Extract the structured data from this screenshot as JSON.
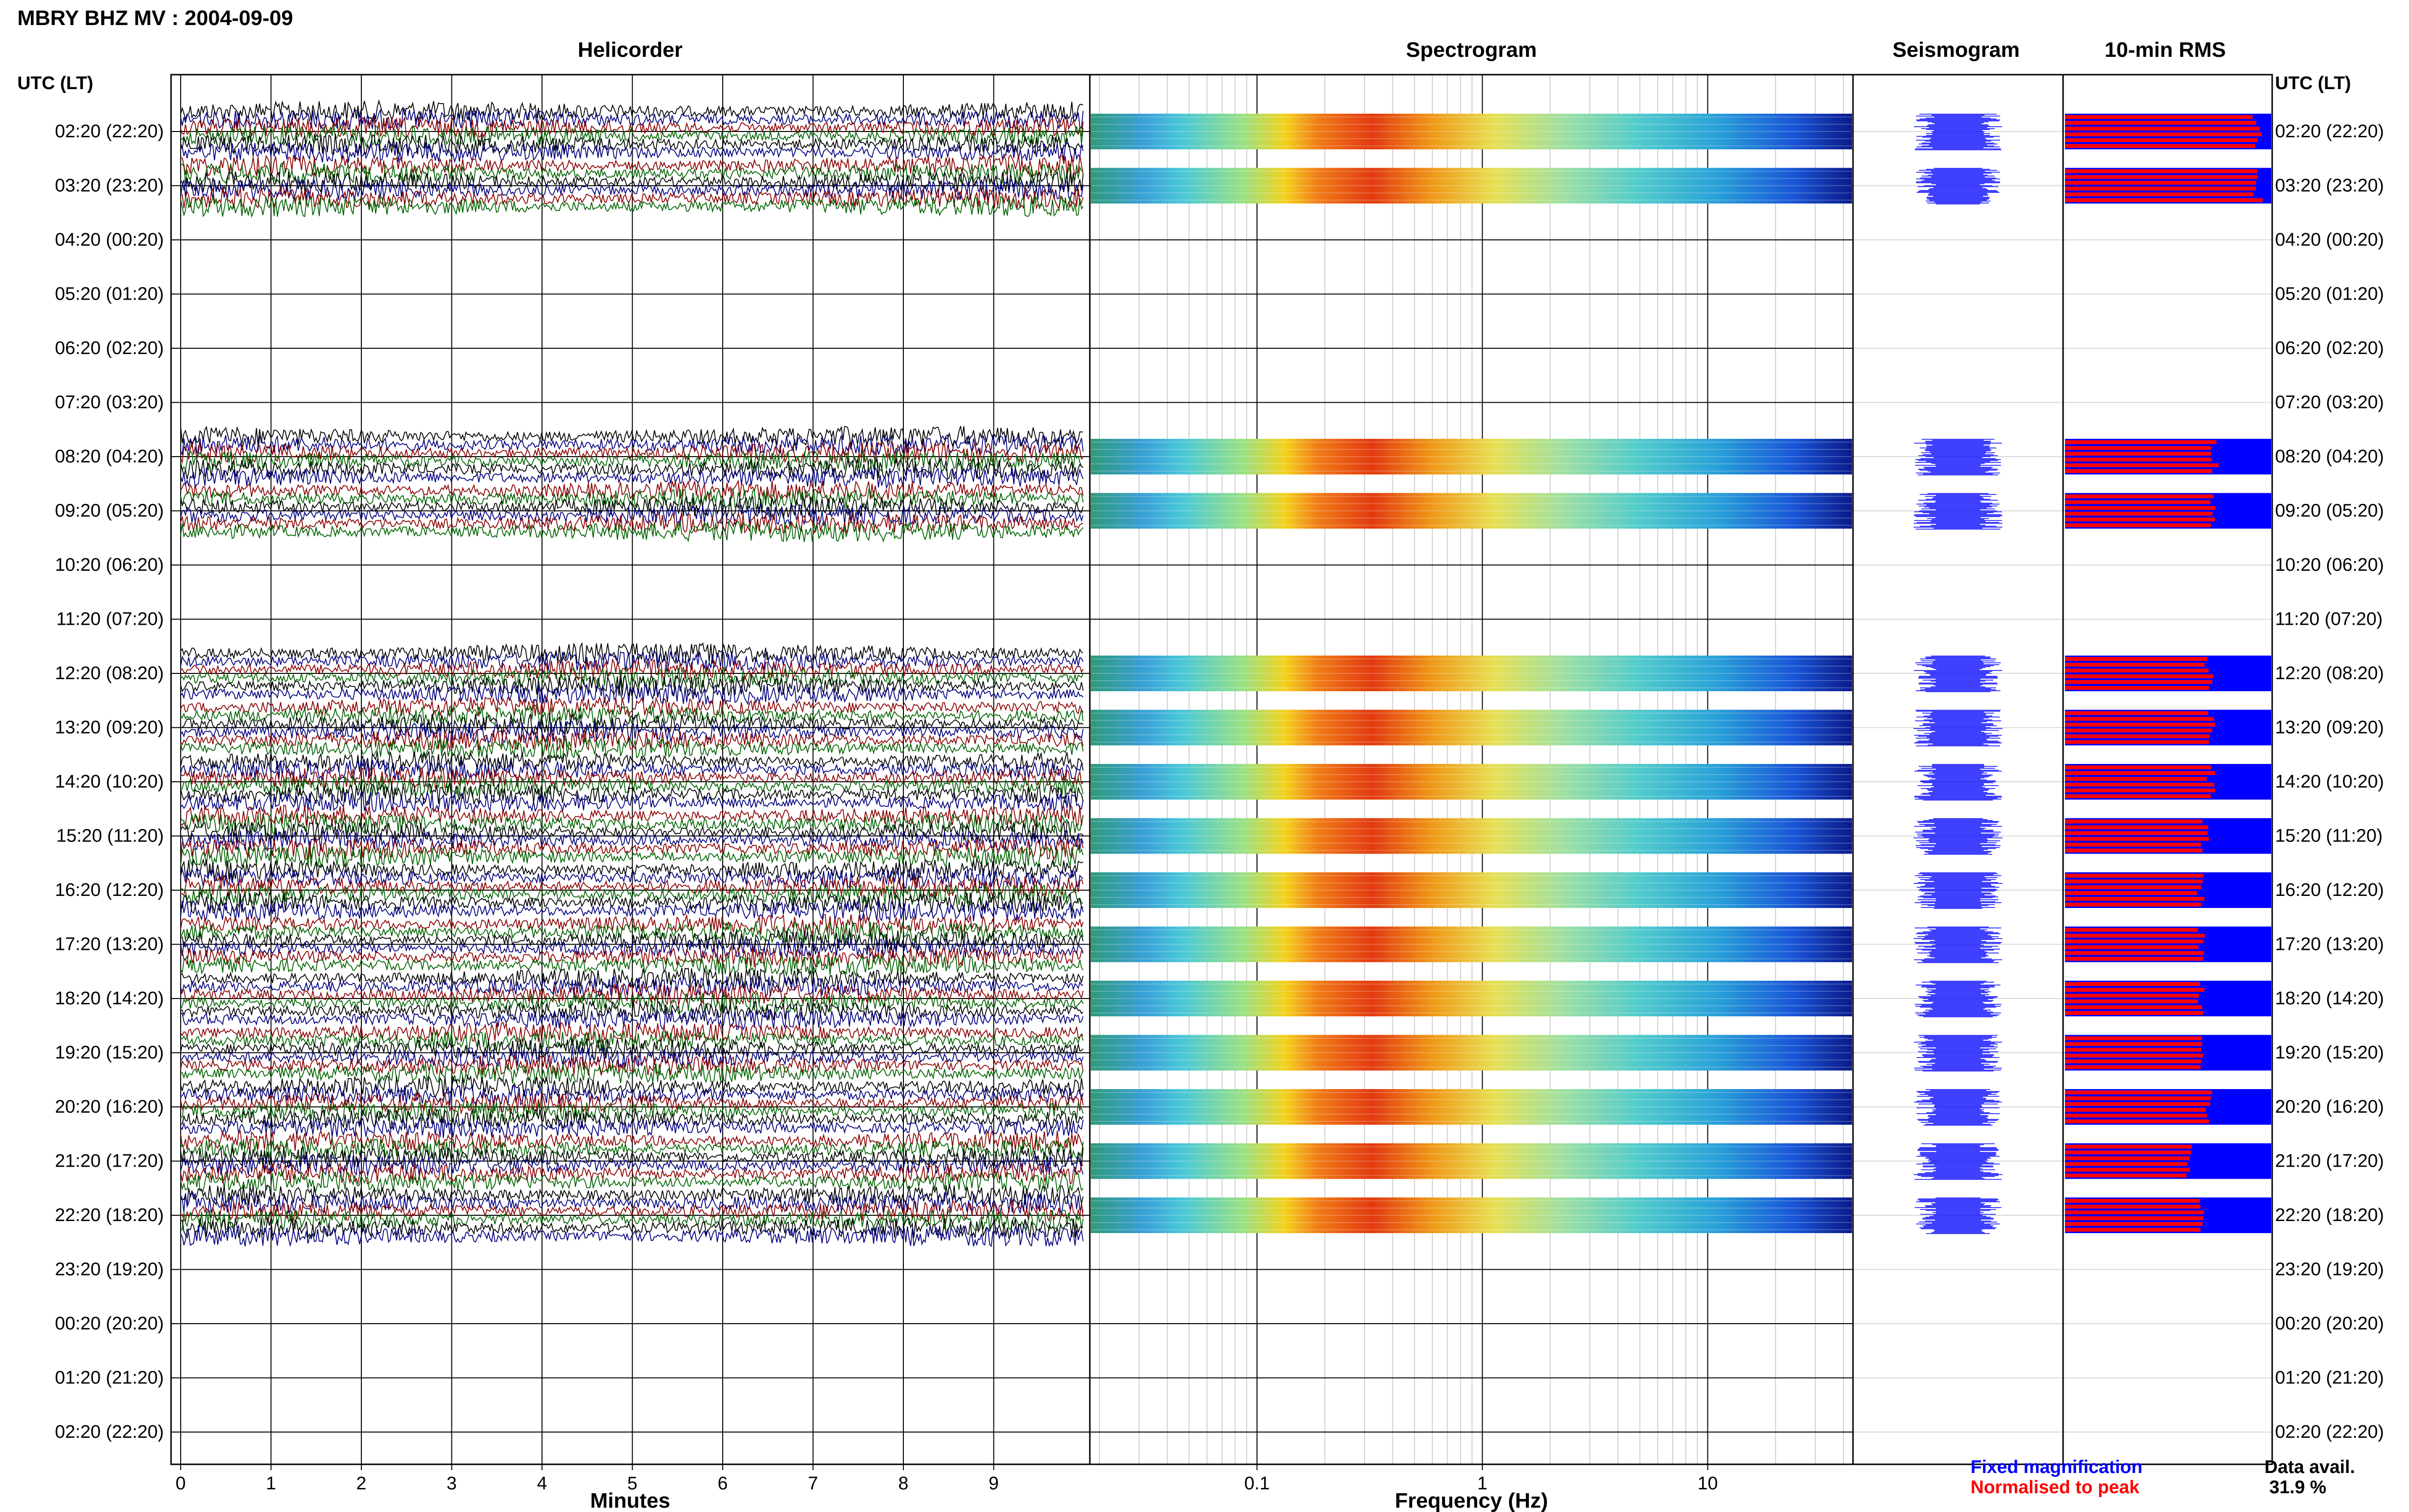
{
  "title": "MBRY BHZ MV : 2004-09-09",
  "panels": {
    "helicorder": "Helicorder",
    "spectrogram": "Spectrogram",
    "seismogram": "Seismogram",
    "rms": "10-min RMS"
  },
  "row_header_left": "UTC (LT)",
  "row_header_right": "UTC (LT)",
  "row_labels": [
    "02:20 (22:20)",
    "03:20 (23:20)",
    "04:20 (00:20)",
    "05:20 (01:20)",
    "06:20 (02:20)",
    "07:20 (03:20)",
    "08:20 (04:20)",
    "09:20 (05:20)",
    "10:20 (06:20)",
    "11:20 (07:20)",
    "12:20 (08:20)",
    "13:20 (09:20)",
    "14:20 (10:20)",
    "15:20 (11:20)",
    "16:20 (12:20)",
    "17:20 (13:20)",
    "18:20 (14:20)",
    "19:20 (15:20)",
    "20:20 (16:20)",
    "21:20 (17:20)",
    "22:20 (18:20)",
    "23:20 (19:20)",
    "00:20 (20:20)",
    "01:20 (21:20)",
    "02:20 (22:20)"
  ],
  "minutes_label": "Minutes",
  "minutes_ticks": [
    "0",
    "1",
    "2",
    "3",
    "4",
    "5",
    "6",
    "7",
    "8",
    "9"
  ],
  "frequency_label": "Frequency (Hz)",
  "frequency_ticks": [
    "0.1",
    "1",
    "10"
  ],
  "legend": {
    "fixed": "Fixed magnification",
    "normalised": "Normalised to peak",
    "avail_label": "Data avail.",
    "avail_value": "31.9 %"
  },
  "colors": {
    "trace_cycle": [
      "#000000",
      "#000080",
      "#8b0000",
      "#006400"
    ],
    "fixed_magnification": "#0000ff",
    "normalised_to_peak": "#ff0000",
    "grid": "#000000"
  },
  "chart_data": [
    {
      "type": "line",
      "panel": "Helicorder",
      "xlabel": "Minutes",
      "xlim": [
        0,
        10
      ],
      "x_ticks": [
        0,
        1,
        2,
        3,
        4,
        5,
        6,
        7,
        8,
        9
      ],
      "rows": "row_labels",
      "active_rows": [
        0,
        1,
        6,
        7,
        10,
        11,
        12,
        13,
        14,
        15,
        16,
        17,
        18,
        19,
        20
      ],
      "traces_per_hour": 6
    },
    {
      "type": "heatmap",
      "panel": "Spectrogram",
      "xlabel": "Frequency (Hz)",
      "x_scale": "log",
      "xlim": [
        0.02,
        40
      ],
      "x_ticks": [
        0.1,
        1,
        10
      ],
      "colormap": "jet",
      "peak_band_hz": [
        0.18,
        0.6
      ],
      "active_rows": [
        0,
        1,
        6,
        7,
        10,
        11,
        12,
        13,
        14,
        15,
        16,
        17,
        18,
        19,
        20
      ]
    },
    {
      "type": "line",
      "panel": "Seismogram",
      "active_rows": [
        0,
        1,
        6,
        7,
        10,
        11,
        12,
        13,
        14,
        15,
        16,
        17,
        18,
        19,
        20
      ],
      "series": [
        {
          "name": "Fixed magnification",
          "color": "#0000ff"
        }
      ]
    },
    {
      "type": "bar",
      "panel": "10-min RMS",
      "orientation": "horizontal",
      "active_rows": [
        0,
        1,
        6,
        7,
        10,
        11,
        12,
        13,
        14,
        15,
        16,
        17,
        18,
        19,
        20
      ],
      "series": [
        {
          "name": "Fixed magnification",
          "color": "#0000ff",
          "values": [
            1,
            1,
            1,
            1,
            1,
            1,
            1,
            1,
            1,
            1,
            1,
            1,
            1,
            1,
            1
          ]
        },
        {
          "name": "Normalised to peak",
          "color": "#ff0000",
          "values": [
            0.96,
            0.96,
            0.75,
            0.75,
            0.72,
            0.73,
            0.73,
            0.7,
            0.68,
            0.68,
            0.68,
            0.68,
            0.72,
            0.62,
            0.68
          ]
        }
      ]
    }
  ]
}
